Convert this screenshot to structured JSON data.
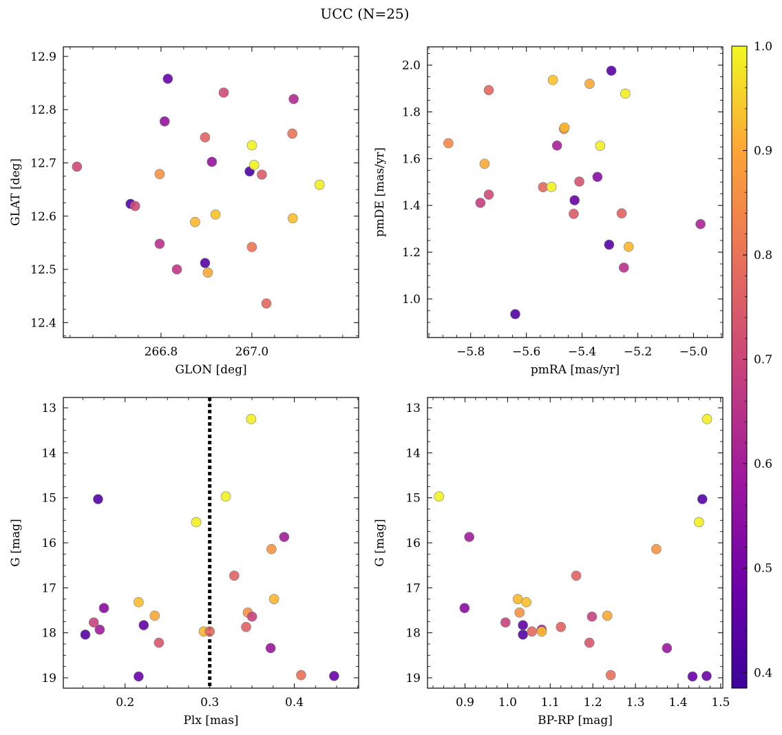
{
  "figure": {
    "title": "UCC (N=25)"
  },
  "colormap": {
    "name": "plasma",
    "range": [
      0.385,
      1.0
    ],
    "ticks": [
      "1.0",
      "0.9",
      "0.8",
      "0.7",
      "0.6",
      "0.5",
      "0.4"
    ],
    "tick_values": [
      1.0,
      0.9,
      0.8,
      0.7,
      0.6,
      0.5,
      0.4
    ]
  },
  "chart_data": [
    {
      "type": "scatter",
      "id": "glon_glat",
      "xlabel": "GLON [deg]",
      "ylabel": "GLAT [deg]",
      "xlim": [
        266.585,
        267.235
      ],
      "ylim": [
        12.372,
        12.918
      ],
      "xticks": [
        266.8,
        267.0
      ],
      "xtick_labels": [
        "266.8",
        "267.0"
      ],
      "yticks": [
        12.4,
        12.5,
        12.6,
        12.7,
        12.8,
        12.9
      ],
      "ytick_labels": [
        "12.4",
        "12.5",
        "12.6",
        "12.7",
        "12.8",
        "12.9"
      ],
      "points": [
        {
          "x": 266.815,
          "y": 12.858,
          "c": 0.44
        },
        {
          "x": 266.808,
          "y": 12.778,
          "c": 0.52
        },
        {
          "x": 266.938,
          "y": 12.832,
          "c": 0.66
        },
        {
          "x": 267.092,
          "y": 12.82,
          "c": 0.58
        },
        {
          "x": 266.897,
          "y": 12.748,
          "c": 0.72
        },
        {
          "x": 267.0,
          "y": 12.733,
          "c": 0.99
        },
        {
          "x": 267.089,
          "y": 12.755,
          "c": 0.76
        },
        {
          "x": 266.615,
          "y": 12.693,
          "c": 0.66
        },
        {
          "x": 266.912,
          "y": 12.702,
          "c": 0.52
        },
        {
          "x": 266.995,
          "y": 12.684,
          "c": 0.39
        },
        {
          "x": 267.005,
          "y": 12.696,
          "c": 0.99
        },
        {
          "x": 267.022,
          "y": 12.678,
          "c": 0.7
        },
        {
          "x": 266.797,
          "y": 12.679,
          "c": 0.82
        },
        {
          "x": 267.149,
          "y": 12.659,
          "c": 0.98
        },
        {
          "x": 266.733,
          "y": 12.623,
          "c": 0.4
        },
        {
          "x": 266.743,
          "y": 12.619,
          "c": 0.66
        },
        {
          "x": 266.875,
          "y": 12.589,
          "c": 0.89
        },
        {
          "x": 266.92,
          "y": 12.603,
          "c": 0.91
        },
        {
          "x": 267.09,
          "y": 12.596,
          "c": 0.9
        },
        {
          "x": 266.797,
          "y": 12.548,
          "c": 0.6
        },
        {
          "x": 267.0,
          "y": 12.542,
          "c": 0.76
        },
        {
          "x": 266.835,
          "y": 12.5,
          "c": 0.62
        },
        {
          "x": 266.897,
          "y": 12.512,
          "c": 0.41
        },
        {
          "x": 266.903,
          "y": 12.494,
          "c": 0.86
        },
        {
          "x": 267.032,
          "y": 12.436,
          "c": 0.73
        }
      ]
    },
    {
      "type": "scatter",
      "id": "pmra_pmde",
      "xlabel": "pmRA [mas/yr]",
      "ylabel": "pmDE [mas/yr]",
      "xlim": [
        -5.955,
        -4.895
      ],
      "ylim": [
        0.835,
        2.078
      ],
      "xticks": [
        -5.8,
        -5.6,
        -5.4,
        -5.2,
        -5.0
      ],
      "xtick_labels": [
        "−5.8",
        "−5.6",
        "−5.4",
        "−5.2",
        "−5.0"
      ],
      "yticks": [
        1.0,
        1.2,
        1.4,
        1.6,
        1.8,
        2.0
      ],
      "ytick_labels": [
        "1.0",
        "1.2",
        "1.4",
        "1.6",
        "1.8",
        "2.0"
      ],
      "points": [
        {
          "x": -5.295,
          "y": 1.976,
          "c": 0.41
        },
        {
          "x": -5.505,
          "y": 1.936,
          "c": 0.91
        },
        {
          "x": -5.373,
          "y": 1.92,
          "c": 0.86
        },
        {
          "x": -5.245,
          "y": 1.878,
          "c": 0.98
        },
        {
          "x": -5.735,
          "y": 1.893,
          "c": 0.73
        },
        {
          "x": -5.465,
          "y": 1.727,
          "c": 0.81
        },
        {
          "x": -5.463,
          "y": 1.733,
          "c": 0.89
        },
        {
          "x": -5.88,
          "y": 1.666,
          "c": 0.8
        },
        {
          "x": -5.49,
          "y": 1.656,
          "c": 0.56
        },
        {
          "x": -5.335,
          "y": 1.655,
          "c": 0.98
        },
        {
          "x": -5.75,
          "y": 1.578,
          "c": 0.86
        },
        {
          "x": -5.345,
          "y": 1.522,
          "c": 0.5
        },
        {
          "x": -5.41,
          "y": 1.502,
          "c": 0.68
        },
        {
          "x": -5.54,
          "y": 1.478,
          "c": 0.73
        },
        {
          "x": -5.51,
          "y": 1.479,
          "c": 0.99
        },
        {
          "x": -5.735,
          "y": 1.446,
          "c": 0.66
        },
        {
          "x": -5.765,
          "y": 1.411,
          "c": 0.63
        },
        {
          "x": -5.427,
          "y": 1.422,
          "c": 0.44
        },
        {
          "x": -5.43,
          "y": 1.364,
          "c": 0.7
        },
        {
          "x": -5.258,
          "y": 1.366,
          "c": 0.72
        },
        {
          "x": -4.975,
          "y": 1.32,
          "c": 0.57
        },
        {
          "x": -5.303,
          "y": 1.232,
          "c": 0.41
        },
        {
          "x": -5.233,
          "y": 1.223,
          "c": 0.89
        },
        {
          "x": -5.25,
          "y": 1.134,
          "c": 0.6
        },
        {
          "x": -5.64,
          "y": 0.935,
          "c": 0.4
        }
      ]
    },
    {
      "type": "scatter",
      "id": "plx_g",
      "xlabel": "Plx [mas]",
      "ylabel": "G [mag]",
      "xlim": [
        0.127,
        0.476
      ],
      "ylim": [
        19.23,
        12.77
      ],
      "y_inverted": true,
      "xticks": [
        0.2,
        0.3,
        0.4
      ],
      "xtick_labels": [
        "0.2",
        "0.3",
        "0.4"
      ],
      "yticks": [
        13,
        14,
        15,
        16,
        17,
        18,
        19
      ],
      "ytick_labels": [
        "13",
        "14",
        "15",
        "16",
        "17",
        "18",
        "19"
      ],
      "vline": {
        "x": 0.3,
        "style": "dotted"
      },
      "points": [
        {
          "x": 0.349,
          "y": 13.25,
          "c": 0.98
        },
        {
          "x": 0.319,
          "y": 14.97,
          "c": 0.99
        },
        {
          "x": 0.168,
          "y": 15.03,
          "c": 0.4
        },
        {
          "x": 0.284,
          "y": 15.54,
          "c": 0.98
        },
        {
          "x": 0.388,
          "y": 15.87,
          "c": 0.55
        },
        {
          "x": 0.373,
          "y": 16.14,
          "c": 0.82
        },
        {
          "x": 0.329,
          "y": 16.73,
          "c": 0.72
        },
        {
          "x": 0.376,
          "y": 17.25,
          "c": 0.89
        },
        {
          "x": 0.216,
          "y": 17.32,
          "c": 0.9
        },
        {
          "x": 0.175,
          "y": 17.45,
          "c": 0.5
        },
        {
          "x": 0.345,
          "y": 17.55,
          "c": 0.82
        },
        {
          "x": 0.35,
          "y": 17.64,
          "c": 0.64
        },
        {
          "x": 0.235,
          "y": 17.62,
          "c": 0.86
        },
        {
          "x": 0.163,
          "y": 17.77,
          "c": 0.64
        },
        {
          "x": 0.222,
          "y": 17.83,
          "c": 0.43
        },
        {
          "x": 0.343,
          "y": 17.87,
          "c": 0.72
        },
        {
          "x": 0.17,
          "y": 17.93,
          "c": 0.55
        },
        {
          "x": 0.293,
          "y": 17.97,
          "c": 0.89
        },
        {
          "x": 0.3,
          "y": 17.97,
          "c": 0.73
        },
        {
          "x": 0.153,
          "y": 18.04,
          "c": 0.41
        },
        {
          "x": 0.24,
          "y": 18.22,
          "c": 0.69
        },
        {
          "x": 0.372,
          "y": 18.34,
          "c": 0.53
        },
        {
          "x": 0.216,
          "y": 18.97,
          "c": 0.44
        },
        {
          "x": 0.408,
          "y": 18.94,
          "c": 0.75
        },
        {
          "x": 0.447,
          "y": 18.96,
          "c": 0.44
        }
      ]
    },
    {
      "type": "scatter",
      "id": "bprp_g",
      "xlabel": "BP-RP [mag]",
      "ylabel": "G [mag]",
      "xlim": [
        0.812,
        1.505
      ],
      "ylim": [
        19.23,
        12.77
      ],
      "y_inverted": true,
      "xticks": [
        0.9,
        1.0,
        1.1,
        1.2,
        1.3,
        1.4,
        1.5
      ],
      "xtick_labels": [
        "0.9",
        "1.0",
        "1.1",
        "1.2",
        "1.3",
        "1.4",
        "1.5"
      ],
      "yticks": [
        13,
        14,
        15,
        16,
        17,
        18,
        19
      ],
      "ytick_labels": [
        "13",
        "14",
        "15",
        "16",
        "17",
        "18",
        "19"
      ],
      "points": [
        {
          "x": 1.468,
          "y": 13.25,
          "c": 0.98
        },
        {
          "x": 0.839,
          "y": 14.97,
          "c": 0.99
        },
        {
          "x": 1.457,
          "y": 15.03,
          "c": 0.4
        },
        {
          "x": 1.449,
          "y": 15.54,
          "c": 0.98
        },
        {
          "x": 0.91,
          "y": 15.87,
          "c": 0.55
        },
        {
          "x": 1.349,
          "y": 16.14,
          "c": 0.82
        },
        {
          "x": 1.161,
          "y": 16.73,
          "c": 0.72
        },
        {
          "x": 1.024,
          "y": 17.25,
          "c": 0.89
        },
        {
          "x": 1.044,
          "y": 17.32,
          "c": 0.9
        },
        {
          "x": 0.899,
          "y": 17.45,
          "c": 0.5
        },
        {
          "x": 1.028,
          "y": 17.55,
          "c": 0.82
        },
        {
          "x": 1.198,
          "y": 17.64,
          "c": 0.64
        },
        {
          "x": 1.234,
          "y": 17.62,
          "c": 0.86
        },
        {
          "x": 0.995,
          "y": 17.77,
          "c": 0.64
        },
        {
          "x": 1.036,
          "y": 17.83,
          "c": 0.43
        },
        {
          "x": 1.125,
          "y": 17.87,
          "c": 0.72
        },
        {
          "x": 1.08,
          "y": 17.93,
          "c": 0.55
        },
        {
          "x": 1.08,
          "y": 17.97,
          "c": 0.89
        },
        {
          "x": 1.057,
          "y": 17.97,
          "c": 0.73
        },
        {
          "x": 1.036,
          "y": 18.04,
          "c": 0.41
        },
        {
          "x": 1.192,
          "y": 18.22,
          "c": 0.69
        },
        {
          "x": 1.374,
          "y": 18.34,
          "c": 0.53
        },
        {
          "x": 1.434,
          "y": 18.97,
          "c": 0.44
        },
        {
          "x": 1.242,
          "y": 18.94,
          "c": 0.75
        },
        {
          "x": 1.467,
          "y": 18.96,
          "c": 0.44
        }
      ]
    }
  ]
}
